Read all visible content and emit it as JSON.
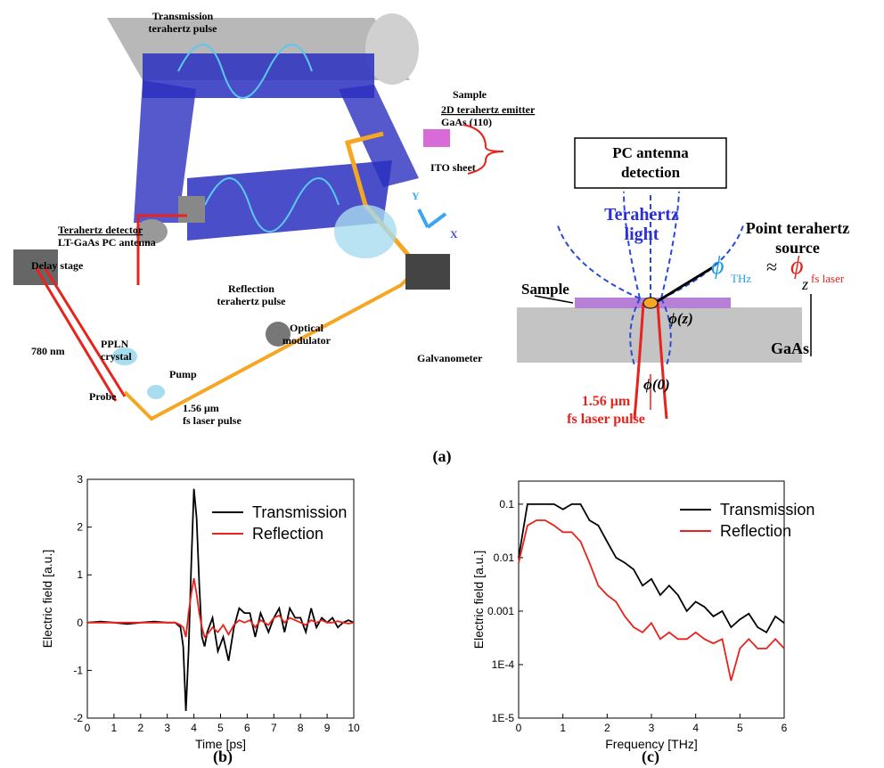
{
  "diagram": {
    "setup": {
      "transmission_pulse": [
        "Transmission",
        "terahertz pulse"
      ],
      "sample": "Sample",
      "emitter": [
        "2D terahertz emitter",
        "GaAs (110)"
      ],
      "detector": [
        "Terahertz detector",
        "LT-GaAs PC antenna"
      ],
      "ito": "ITO sheet",
      "delay": "Delay stage",
      "reflection_pulse": [
        "Reflection",
        "terahertz pulse"
      ],
      "wavelength": "780 nm",
      "ppln": [
        "PPLN",
        "crystal"
      ],
      "modulator": [
        "Optical",
        "modulator"
      ],
      "pump": "Pump",
      "probe": "Probe",
      "laser": [
        "1.56 μm",
        "fs laser pulse"
      ],
      "galvanometer": "Galvanometer",
      "axis_x": "X",
      "axis_y": "Y"
    },
    "schematic": {
      "detection": [
        "PC antenna",
        "detection"
      ],
      "light": [
        "Terahertz",
        "light"
      ],
      "source": [
        "Point terahertz",
        "source"
      ],
      "phi_thz": "ϕ",
      "thz": "THz",
      "approx": "≈",
      "phi_fs": "ϕ",
      "fs": "fs laser",
      "sample": "Sample",
      "phi_z": "ϕ(z)",
      "phi_0": "ϕ(0)",
      "gaas": "GaAs",
      "z": "z",
      "laser": [
        "1.56 μm",
        "fs laser pulse"
      ]
    }
  },
  "panel_labels": [
    "(a)",
    "(b)",
    "(c)"
  ],
  "chart_data": [
    {
      "type": "line",
      "x_label": "Time [ps]",
      "y_label": "Electric field [a.u.]",
      "xlim": [
        0,
        10
      ],
      "ylim": [
        -2,
        3
      ],
      "xticks": [
        0,
        1,
        2,
        3,
        4,
        5,
        6,
        7,
        8,
        9,
        10
      ],
      "yticks": [
        -2,
        -1,
        0,
        1,
        2,
        3
      ],
      "legend": "upper right",
      "grid": false,
      "x": [
        0,
        0.5,
        1,
        1.5,
        2,
        2.5,
        3,
        3.3,
        3.5,
        3.6,
        3.7,
        3.8,
        3.9,
        4.0,
        4.1,
        4.2,
        4.3,
        4.4,
        4.5,
        4.7,
        4.9,
        5.1,
        5.3,
        5.5,
        5.7,
        5.9,
        6.1,
        6.3,
        6.5,
        6.8,
        7.0,
        7.2,
        7.4,
        7.6,
        7.8,
        8.0,
        8.2,
        8.4,
        8.6,
        8.8,
        9.0,
        9.2,
        9.4,
        9.6,
        9.8,
        10
      ],
      "series": [
        {
          "name": "Transmission",
          "color": "#000000",
          "values": [
            0,
            0.02,
            0,
            -0.03,
            0,
            0.02,
            0,
            0,
            -0.1,
            -0.5,
            -1.85,
            -0.6,
            1.2,
            2.8,
            2.2,
            0.8,
            -0.3,
            -0.5,
            -0.2,
            0.1,
            -0.6,
            -0.3,
            -0.8,
            -0.1,
            0.3,
            0.2,
            0.2,
            -0.3,
            0.2,
            -0.2,
            0.1,
            0.3,
            -0.2,
            0.3,
            0.1,
            0.1,
            -0.2,
            0.3,
            -0.1,
            0.1,
            0,
            0.1,
            -0.1,
            0,
            0.05,
            0
          ]
        },
        {
          "name": "Reflection",
          "color": "#e8221c",
          "values": [
            0,
            0,
            0,
            0,
            0,
            0,
            0,
            0,
            -0.05,
            -0.1,
            -0.3,
            0.2,
            0.6,
            0.93,
            0.6,
            0.2,
            -0.1,
            -0.3,
            -0.25,
            -0.1,
            -0.2,
            -0.05,
            -0.25,
            -0.05,
            0.05,
            0,
            0.05,
            -0.1,
            0.05,
            -0.05,
            0.1,
            0.15,
            0,
            0.1,
            0.05,
            0,
            -0.05,
            0.05,
            0,
            0.05,
            0,
            0,
            0.03,
            0,
            -0.02,
            0
          ]
        }
      ]
    },
    {
      "type": "line",
      "x_label": "Frequency [THz]",
      "y_label": "Electric field [a.u.]",
      "log_y": true,
      "xlim": [
        0,
        6
      ],
      "ylim": [
        1e-05,
        0.27
      ],
      "xticks": [
        0,
        1,
        2,
        3,
        4,
        5,
        6
      ],
      "yticks": [
        {
          "value": 1e-05,
          "label": "1E-5"
        },
        {
          "value": 0.0001,
          "label": "1E-4"
        },
        0.001,
        0.01,
        0.1
      ],
      "legend": "upper right",
      "grid": false,
      "x": [
        0,
        0.2,
        0.4,
        0.6,
        0.8,
        1.0,
        1.2,
        1.4,
        1.6,
        1.8,
        2.0,
        2.2,
        2.4,
        2.6,
        2.8,
        3.0,
        3.2,
        3.4,
        3.6,
        3.8,
        4.0,
        4.2,
        4.4,
        4.6,
        4.8,
        5.0,
        5.2,
        5.4,
        5.6,
        5.8,
        6.0
      ],
      "series": [
        {
          "name": "Transmission",
          "color": "#000000",
          "values": [
            0.01,
            0.1,
            0.1,
            0.1,
            0.1,
            0.08,
            0.1,
            0.1,
            0.05,
            0.04,
            0.02,
            0.01,
            0.008,
            0.006,
            0.003,
            0.004,
            0.002,
            0.003,
            0.002,
            0.001,
            0.0015,
            0.0012,
            0.0008,
            0.001,
            0.0005,
            0.0007,
            0.0009,
            0.0005,
            0.0004,
            0.0008,
            0.0006
          ]
        },
        {
          "name": "Reflection",
          "color": "#e8221c",
          "values": [
            0.008,
            0.04,
            0.05,
            0.05,
            0.04,
            0.03,
            0.03,
            0.02,
            0.008,
            0.003,
            0.002,
            0.0015,
            0.0008,
            0.0005,
            0.0004,
            0.0006,
            0.0003,
            0.0004,
            0.0003,
            0.0003,
            0.0004,
            0.0003,
            0.00025,
            0.0003,
            5e-05,
            0.0002,
            0.0003,
            0.0002,
            0.0002,
            0.0003,
            0.0002
          ]
        }
      ]
    }
  ]
}
